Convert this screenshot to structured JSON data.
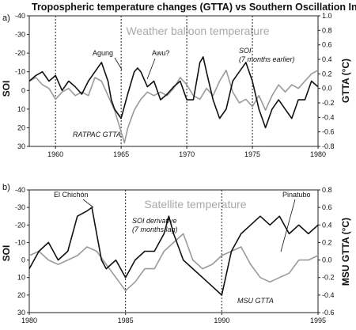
{
  "title": "Tropospheric temperature changes (GTTA) vs Southern Oscillation Index (SOI)",
  "colors": {
    "soi": "#111111",
    "temp": "#9a9a9a",
    "overlay_text": "#a9a9a9"
  },
  "chart_data": [
    {
      "type": "line",
      "panel_label": "a)",
      "overlay_label": "Weather balloon temperature",
      "xlim": [
        1958,
        1980
      ],
      "x_ticks": [
        "1960",
        "1965",
        "1970",
        "1975",
        "1980"
      ],
      "left_axis": {
        "label": "SOI",
        "inverted": true,
        "range": [
          -40,
          30
        ],
        "ticks": [
          "-40",
          "-30",
          "-20",
          "-10",
          "0",
          "10",
          "20",
          "30"
        ]
      },
      "right_axis": {
        "label": "GTTA (°C)",
        "range": [
          -0.8,
          1.0
        ],
        "ticks": [
          "1.0",
          "0.8",
          "0.6",
          "0.4",
          "0.2",
          "0.0",
          "-0.2",
          "-0.4",
          "-0.6",
          "-0.8"
        ]
      },
      "vlines": [
        1960,
        1965,
        1970,
        1975
      ],
      "series": [
        {
          "name": "SOI (7 months earlier)",
          "axis": "left",
          "color": "#111111",
          "x": [
            1958,
            1958.5,
            1959,
            1959.5,
            1960,
            1960.5,
            1961,
            1961.5,
            1962,
            1962.5,
            1963,
            1963.5,
            1964,
            1964.25,
            1964.5,
            1965,
            1965.5,
            1966,
            1966.25,
            1966.5,
            1967,
            1967.5,
            1968,
            1968.5,
            1969,
            1969.5,
            1970,
            1970.5,
            1971,
            1971.25,
            1971.5,
            1972,
            1972.5,
            1973,
            1973.5,
            1974,
            1974.5,
            1975,
            1975.5,
            1976,
            1976.5,
            1977,
            1977.5,
            1978,
            1978.5,
            1979,
            1979.5,
            1980
          ],
          "y": [
            -5,
            -8,
            -10,
            -5,
            -8,
            0,
            -5,
            -2,
            2,
            -5,
            -10,
            -15,
            -5,
            5,
            10,
            15,
            2,
            -10,
            -12,
            -10,
            -2,
            -5,
            5,
            2,
            -2,
            -5,
            5,
            5,
            -15,
            -18,
            -10,
            5,
            15,
            10,
            -5,
            -10,
            -15,
            -5,
            10,
            20,
            10,
            5,
            10,
            15,
            5,
            5,
            -5,
            -2
          ]
        },
        {
          "name": "RATPAC GTTA",
          "axis": "right",
          "color": "#9a9a9a",
          "x": [
            1958,
            1958.5,
            1959,
            1959.5,
            1960,
            1960.5,
            1961,
            1961.5,
            1962,
            1962.5,
            1963,
            1963.5,
            1964,
            1964.5,
            1965,
            1965.25,
            1965.5,
            1966,
            1966.5,
            1967,
            1967.5,
            1968,
            1968.5,
            1969,
            1969.5,
            1970,
            1970.5,
            1971,
            1971.5,
            1972,
            1972.5,
            1973,
            1973.5,
            1974,
            1974.5,
            1975,
            1975.5,
            1976,
            1976.5,
            1977,
            1977.5,
            1978,
            1978.5,
            1979,
            1979.5,
            1980
          ],
          "y": [
            0.1,
            0.15,
            0.05,
            0.0,
            -0.15,
            -0.05,
            0.0,
            -0.1,
            -0.05,
            -0.1,
            0.15,
            0.1,
            -0.1,
            -0.3,
            -0.6,
            -0.75,
            -0.55,
            -0.3,
            -0.15,
            -0.05,
            -0.1,
            -0.05,
            -0.1,
            0.0,
            0.15,
            0.05,
            -0.1,
            -0.15,
            0.0,
            -0.1,
            0.1,
            0.25,
            -0.05,
            -0.2,
            -0.15,
            -0.25,
            -0.1,
            -0.3,
            -0.1,
            0.05,
            -0.05,
            0.05,
            0.0,
            0.1,
            0.2,
            0.25
          ]
        }
      ],
      "annotations": {
        "agung": "Agung",
        "awu": "Awu?",
        "soi_note_1": "SOI",
        "soi_note_2": "(7 months earlier)",
        "ratpac": "RATPAC GTTA"
      }
    },
    {
      "type": "line",
      "panel_label": "b)",
      "overlay_label": "Satellite temperature",
      "xlim": [
        1980,
        1995
      ],
      "x_ticks": [
        "1980",
        "1985",
        "1990",
        "1995"
      ],
      "left_axis": {
        "label": "SOI",
        "inverted": true,
        "range": [
          -40,
          30
        ],
        "ticks": [
          "-40",
          "-30",
          "-20",
          "-10",
          "0",
          "10",
          "20",
          "30"
        ]
      },
      "right_axis": {
        "label": "MSU GTTA (°C)",
        "range": [
          -0.6,
          0.8
        ],
        "ticks": [
          "0.8",
          "0.6",
          "0.4",
          "0.2",
          "0.0",
          "-0.2",
          "-0.4",
          "-0.6"
        ]
      },
      "vlines": [
        1985,
        1990
      ],
      "series": [
        {
          "name": "SOI derivative (7 months lag)",
          "axis": "left",
          "color": "#111111",
          "x": [
            1980,
            1980.5,
            1981,
            1981.5,
            1982,
            1982.5,
            1983,
            1983.25,
            1983.5,
            1983.75,
            1984,
            1984.5,
            1985,
            1985.5,
            1986,
            1986.5,
            1987,
            1987.25,
            1987.5,
            1988,
            1988.5,
            1989,
            1989.5,
            1990,
            1990.5,
            1991,
            1991.5,
            1992,
            1992.5,
            1993,
            1993.5,
            1994,
            1994.5,
            1995
          ],
          "y": [
            5,
            -5,
            -10,
            0,
            -5,
            -25,
            -28,
            -30,
            -15,
            0,
            5,
            0,
            10,
            0,
            -5,
            -5,
            -15,
            -25,
            -15,
            0,
            5,
            10,
            15,
            20,
            -5,
            -15,
            -20,
            -25,
            -20,
            -25,
            -15,
            -20,
            -15,
            -20
          ]
        },
        {
          "name": "MSU GTTA",
          "axis": "right",
          "color": "#9a9a9a",
          "x": [
            1980,
            1980.5,
            1981,
            1981.5,
            1982,
            1982.5,
            1983,
            1983.5,
            1984,
            1984.5,
            1985,
            1985.5,
            1986,
            1986.5,
            1987,
            1987.5,
            1988,
            1988.5,
            1989,
            1989.5,
            1990,
            1990.5,
            1991,
            1991.5,
            1992,
            1992.5,
            1993,
            1993.5,
            1994,
            1994.5,
            1995
          ],
          "y": [
            0.05,
            0.1,
            0.0,
            -0.05,
            0.0,
            0.05,
            0.15,
            0.1,
            -0.05,
            -0.2,
            -0.35,
            -0.25,
            -0.1,
            -0.1,
            0.1,
            0.2,
            0.3,
            0.0,
            -0.1,
            -0.05,
            0.05,
            0.1,
            0.15,
            -0.05,
            -0.2,
            -0.25,
            -0.2,
            -0.15,
            0.0,
            0.0,
            0.05
          ]
        }
      ],
      "annotations": {
        "el_chichon": "El Chichón",
        "soi_note_1": "SOI derivative",
        "soi_note_2": "(7 months lag)",
        "pinatubo": "Pinatubo",
        "msu": "MSU GTTA"
      }
    }
  ]
}
